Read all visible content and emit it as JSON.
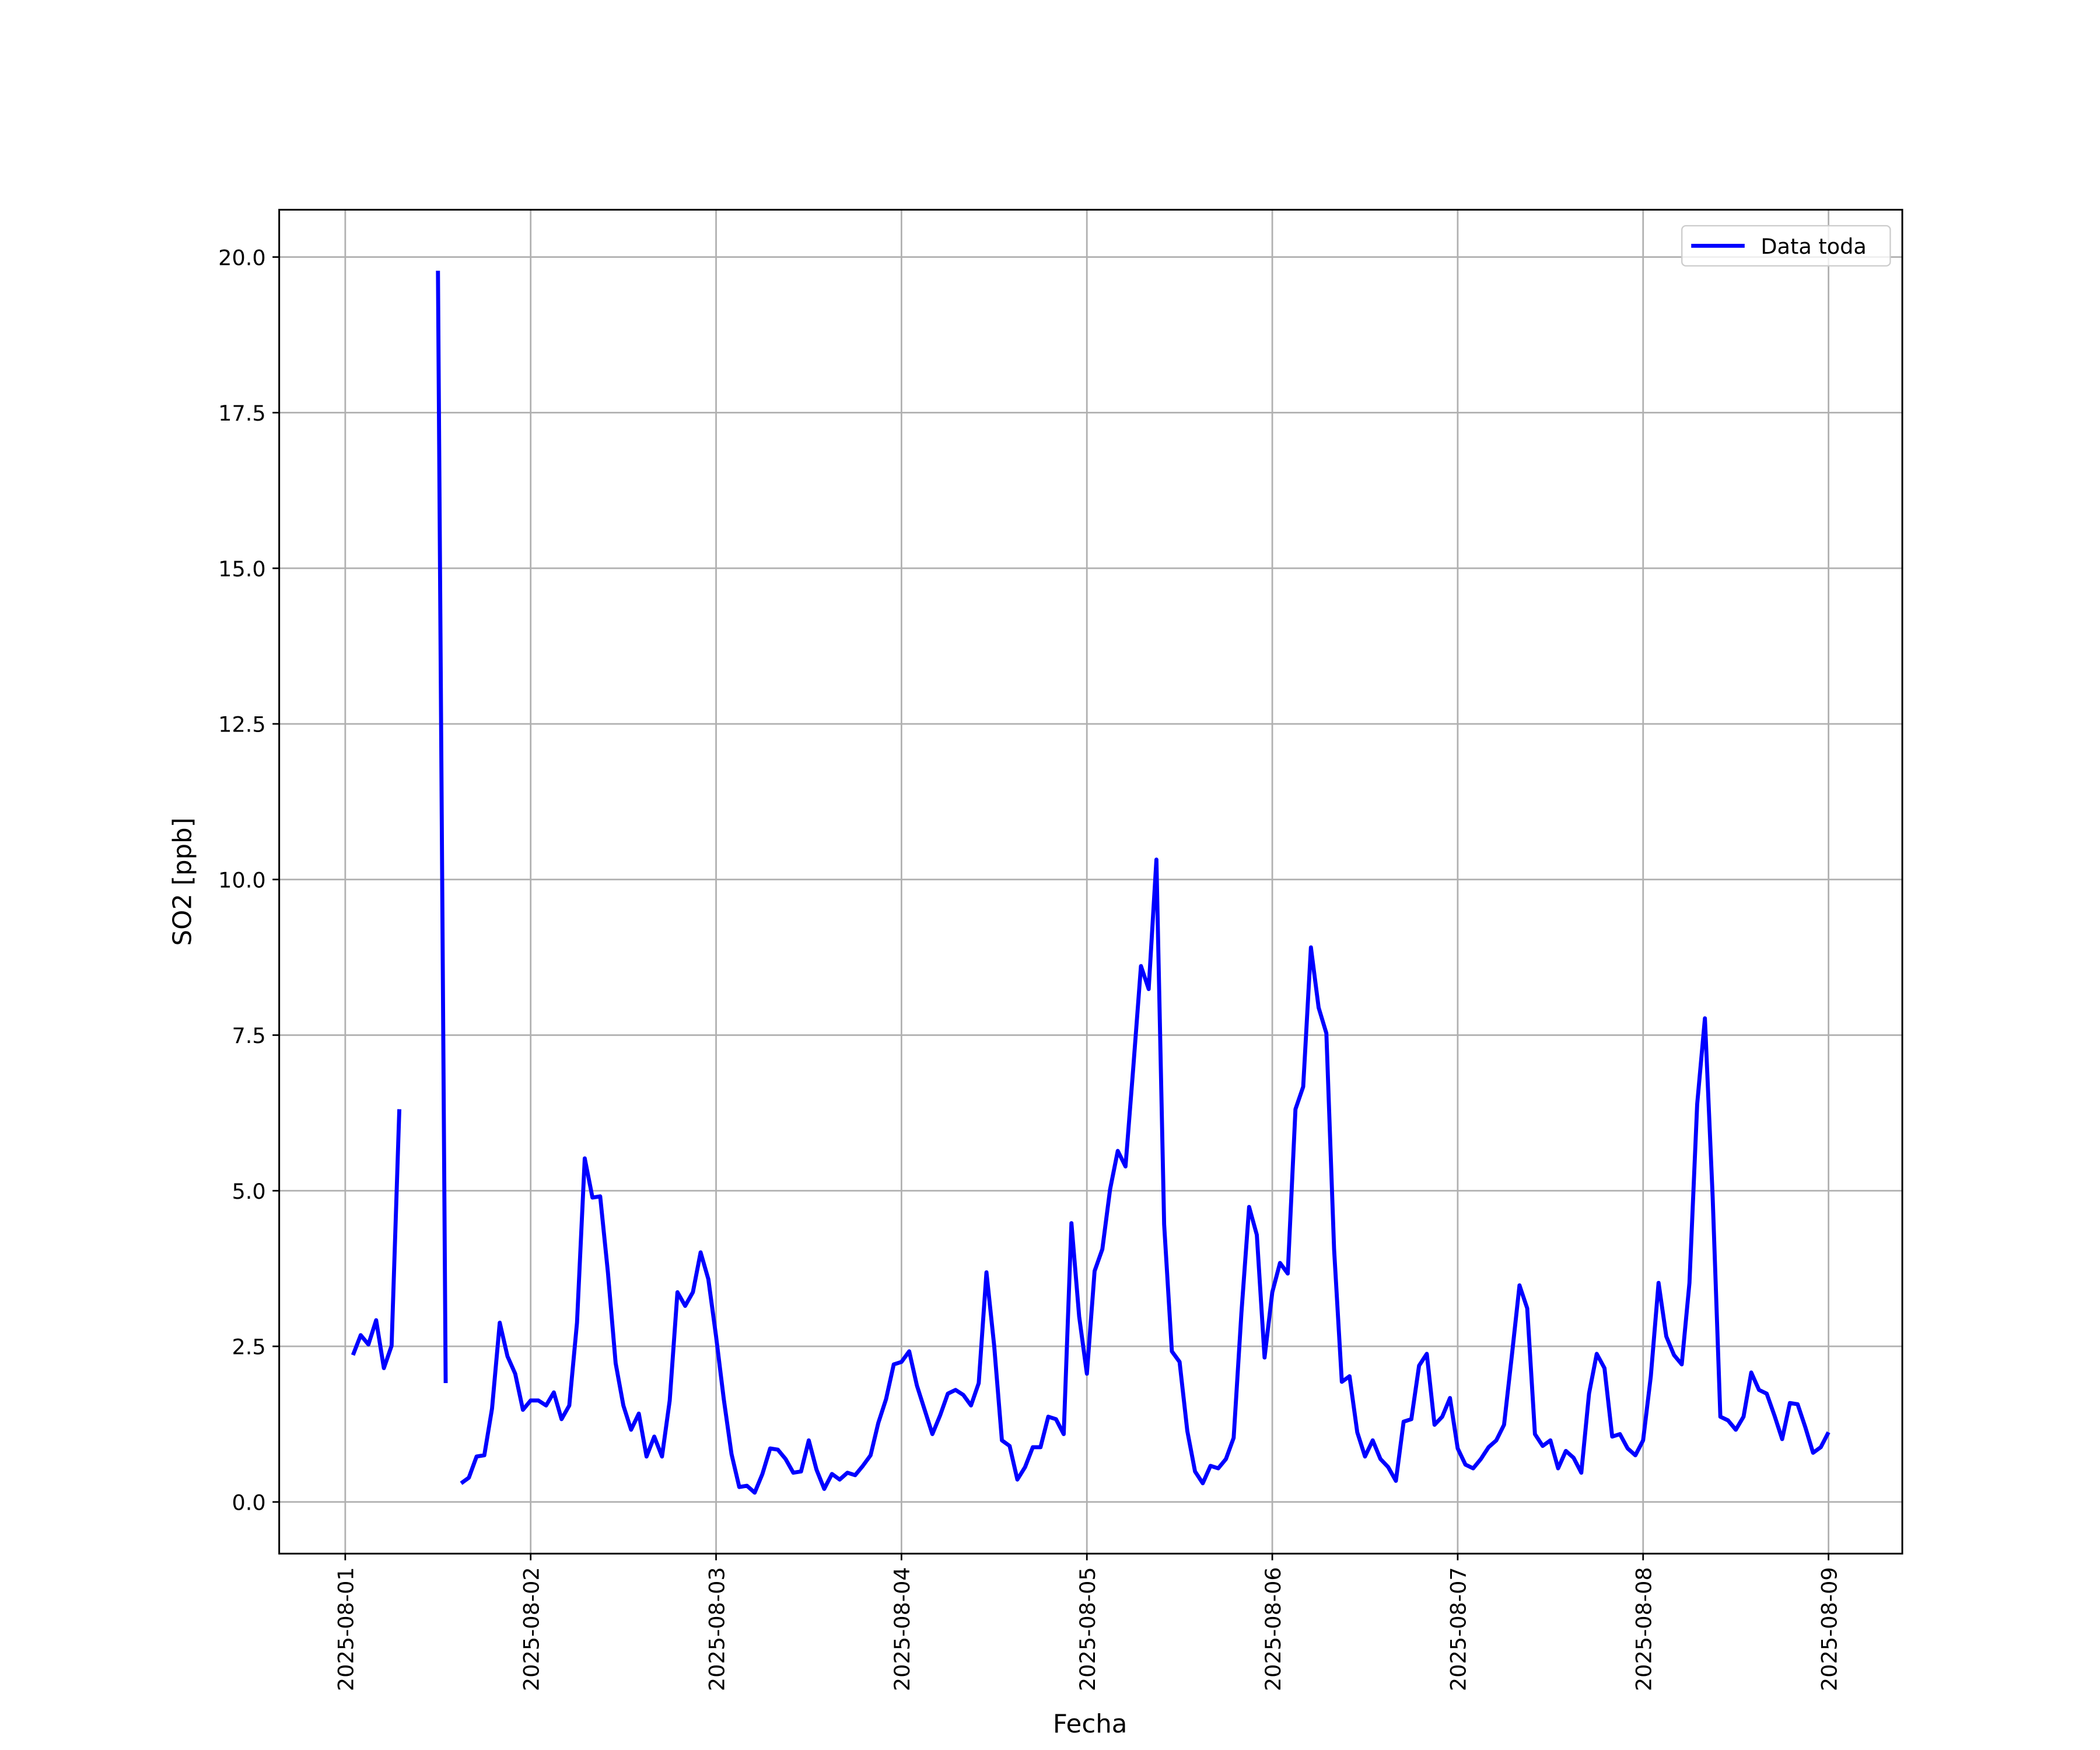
{
  "chart_data": {
    "type": "line",
    "xlabel": "Fecha",
    "ylabel": "SO2 [ppb]",
    "x": [
      "2025-08-01T01:00",
      "2025-08-01T02:00",
      "2025-08-01T03:00",
      "2025-08-01T04:00",
      "2025-08-01T05:00",
      "2025-08-01T06:00",
      "2025-08-01T07:00",
      "2025-08-01T08:00",
      "2025-08-01T09:00",
      "2025-08-01T10:00",
      "2025-08-01T11:00",
      "2025-08-01T12:00",
      "2025-08-01T13:00",
      "2025-08-01T14:00",
      "2025-08-01T15:00",
      "2025-08-01T16:00",
      "2025-08-01T17:00",
      "2025-08-01T18:00",
      "2025-08-01T19:00",
      "2025-08-01T20:00",
      "2025-08-01T21:00",
      "2025-08-01T22:00",
      "2025-08-01T23:00",
      "2025-08-02T00:00",
      "2025-08-02T01:00",
      "2025-08-02T02:00",
      "2025-08-02T03:00",
      "2025-08-02T04:00",
      "2025-08-02T05:00",
      "2025-08-02T06:00",
      "2025-08-02T07:00",
      "2025-08-02T08:00",
      "2025-08-02T09:00",
      "2025-08-02T10:00",
      "2025-08-02T11:00",
      "2025-08-02T12:00",
      "2025-08-02T13:00",
      "2025-08-02T14:00",
      "2025-08-02T15:00",
      "2025-08-02T16:00",
      "2025-08-02T17:00",
      "2025-08-02T18:00",
      "2025-08-02T19:00",
      "2025-08-02T20:00",
      "2025-08-02T21:00",
      "2025-08-02T22:00",
      "2025-08-02T23:00",
      "2025-08-03T00:00",
      "2025-08-03T01:00",
      "2025-08-03T02:00",
      "2025-08-03T03:00",
      "2025-08-03T04:00",
      "2025-08-03T05:00",
      "2025-08-03T06:00",
      "2025-08-03T07:00",
      "2025-08-03T08:00",
      "2025-08-03T09:00",
      "2025-08-03T10:00",
      "2025-08-03T11:00",
      "2025-08-03T12:00",
      "2025-08-03T13:00",
      "2025-08-03T14:00",
      "2025-08-03T15:00",
      "2025-08-03T16:00",
      "2025-08-03T17:00",
      "2025-08-03T18:00",
      "2025-08-03T19:00",
      "2025-08-03T20:00",
      "2025-08-03T21:00",
      "2025-08-03T22:00",
      "2025-08-03T23:00",
      "2025-08-04T00:00",
      "2025-08-04T01:00",
      "2025-08-04T02:00",
      "2025-08-04T03:00",
      "2025-08-04T04:00",
      "2025-08-04T05:00",
      "2025-08-04T06:00",
      "2025-08-04T07:00",
      "2025-08-04T08:00",
      "2025-08-04T09:00",
      "2025-08-04T10:00",
      "2025-08-04T11:00",
      "2025-08-04T12:00",
      "2025-08-04T13:00",
      "2025-08-04T14:00",
      "2025-08-04T15:00",
      "2025-08-04T16:00",
      "2025-08-04T17:00",
      "2025-08-04T18:00",
      "2025-08-04T19:00",
      "2025-08-04T20:00",
      "2025-08-04T21:00",
      "2025-08-04T22:00",
      "2025-08-04T23:00",
      "2025-08-05T00:00",
      "2025-08-05T01:00",
      "2025-08-05T02:00",
      "2025-08-05T03:00",
      "2025-08-05T04:00",
      "2025-08-05T05:00",
      "2025-08-05T06:00",
      "2025-08-05T07:00",
      "2025-08-05T08:00",
      "2025-08-05T09:00",
      "2025-08-05T10:00",
      "2025-08-05T11:00",
      "2025-08-05T12:00",
      "2025-08-05T13:00",
      "2025-08-05T14:00",
      "2025-08-05T15:00",
      "2025-08-05T16:00",
      "2025-08-05T17:00",
      "2025-08-05T18:00",
      "2025-08-05T19:00",
      "2025-08-05T20:00",
      "2025-08-05T21:00",
      "2025-08-05T22:00",
      "2025-08-05T23:00",
      "2025-08-06T00:00",
      "2025-08-06T01:00",
      "2025-08-06T02:00",
      "2025-08-06T03:00",
      "2025-08-06T04:00",
      "2025-08-06T05:00",
      "2025-08-06T06:00",
      "2025-08-06T07:00",
      "2025-08-06T08:00",
      "2025-08-06T09:00",
      "2025-08-06T10:00",
      "2025-08-06T11:00",
      "2025-08-06T12:00",
      "2025-08-06T13:00",
      "2025-08-06T14:00",
      "2025-08-06T15:00",
      "2025-08-06T16:00",
      "2025-08-06T17:00",
      "2025-08-06T18:00",
      "2025-08-06T19:00",
      "2025-08-06T20:00",
      "2025-08-06T21:00",
      "2025-08-06T22:00",
      "2025-08-06T23:00",
      "2025-08-07T00:00",
      "2025-08-07T01:00",
      "2025-08-07T02:00",
      "2025-08-07T03:00",
      "2025-08-07T04:00",
      "2025-08-07T05:00",
      "2025-08-07T06:00",
      "2025-08-07T07:00",
      "2025-08-07T08:00",
      "2025-08-07T09:00",
      "2025-08-07T10:00",
      "2025-08-07T11:00",
      "2025-08-07T12:00",
      "2025-08-07T13:00",
      "2025-08-07T14:00",
      "2025-08-07T15:00",
      "2025-08-07T16:00",
      "2025-08-07T17:00",
      "2025-08-07T18:00",
      "2025-08-07T19:00",
      "2025-08-07T20:00",
      "2025-08-07T21:00",
      "2025-08-07T22:00",
      "2025-08-07T23:00",
      "2025-08-08T00:00",
      "2025-08-08T01:00",
      "2025-08-08T02:00",
      "2025-08-08T03:00",
      "2025-08-08T04:00",
      "2025-08-08T05:00",
      "2025-08-08T06:00",
      "2025-08-08T07:00",
      "2025-08-08T08:00",
      "2025-08-08T09:00",
      "2025-08-08T10:00",
      "2025-08-08T11:00",
      "2025-08-08T12:00",
      "2025-08-08T13:00",
      "2025-08-08T14:00",
      "2025-08-08T15:00",
      "2025-08-08T16:00",
      "2025-08-08T17:00",
      "2025-08-08T18:00",
      "2025-08-08T19:00",
      "2025-08-08T20:00",
      "2025-08-08T21:00",
      "2025-08-08T22:00",
      "2025-08-08T23:00",
      "2025-08-09T00:00"
    ],
    "series": [
      {
        "name": "Data toda",
        "color": "#0000ff",
        "values": [
          2.36,
          2.68,
          2.53,
          2.92,
          2.15,
          2.51,
          6.31,
          null,
          null,
          null,
          null,
          19.78,
          1.91,
          null,
          0.3,
          0.39,
          0.73,
          0.75,
          1.5,
          2.88,
          2.34,
          2.06,
          1.48,
          1.63,
          1.63,
          1.55,
          1.76,
          1.33,
          1.55,
          2.88,
          5.52,
          4.89,
          4.91,
          3.69,
          2.23,
          1.55,
          1.16,
          1.42,
          0.73,
          1.05,
          0.73,
          1.63,
          3.37,
          3.15,
          3.37,
          4.01,
          3.58,
          2.66,
          1.65,
          0.77,
          0.24,
          0.26,
          0.15,
          0.45,
          0.86,
          0.84,
          0.69,
          0.47,
          0.49,
          0.99,
          0.52,
          0.21,
          0.45,
          0.36,
          0.47,
          0.43,
          0.58,
          0.75,
          1.27,
          1.65,
          2.21,
          2.25,
          2.42,
          1.87,
          1.48,
          1.09,
          1.39,
          1.74,
          1.8,
          1.72,
          1.55,
          1.91,
          3.69,
          2.51,
          0.99,
          0.9,
          0.36,
          0.56,
          0.88,
          0.88,
          1.37,
          1.33,
          1.09,
          4.48,
          2.98,
          2.06,
          3.71,
          4.06,
          5.02,
          5.64,
          5.39,
          6.97,
          8.61,
          8.24,
          10.32,
          4.46,
          2.42,
          2.25,
          1.14,
          0.49,
          0.3,
          0.58,
          0.54,
          0.69,
          1.03,
          3.03,
          4.74,
          4.29,
          2.32,
          3.37,
          3.84,
          3.67,
          6.31,
          6.67,
          8.91,
          7.94,
          7.53,
          4.06,
          1.93,
          2.02,
          1.12,
          0.73,
          0.99,
          0.69,
          0.56,
          0.34,
          1.29,
          1.33,
          2.19,
          2.38,
          1.24,
          1.37,
          1.67,
          0.86,
          0.6,
          0.54,
          0.69,
          0.88,
          0.99,
          1.24,
          2.34,
          3.48,
          3.11,
          1.09,
          0.9,
          0.99,
          0.54,
          0.82,
          0.71,
          0.47,
          1.74,
          2.38,
          2.15,
          1.05,
          1.09,
          0.86,
          0.75,
          0.99,
          2.02,
          3.52,
          2.66,
          2.36,
          2.21,
          3.52,
          6.39,
          7.77,
          4.91,
          1.37,
          1.31,
          1.16,
          1.37,
          2.08,
          1.8,
          1.74,
          1.39,
          1.01,
          1.59,
          1.57,
          1.2,
          0.79,
          0.88,
          1.12
        ]
      }
    ],
    "xlim": [
      "2025-07-31T15:27",
      "2025-08-09T09:33"
    ],
    "xticks": [
      "2025-08-01",
      "2025-08-02",
      "2025-08-03",
      "2025-08-04",
      "2025-08-05",
      "2025-08-06",
      "2025-08-07",
      "2025-08-08",
      "2025-08-09"
    ],
    "ylim": [
      -0.83,
      20.76
    ],
    "yticks": [
      {
        "value": 0,
        "label": "0.0"
      },
      2.5,
      {
        "value": 5,
        "label": "5.0"
      },
      7.5,
      {
        "value": 10,
        "label": "10.0"
      },
      12.5,
      {
        "value": 15,
        "label": "15.0"
      },
      17.5,
      {
        "value": 20,
        "label": "20.0"
      }
    ],
    "grid": true,
    "legend": "upper right"
  }
}
